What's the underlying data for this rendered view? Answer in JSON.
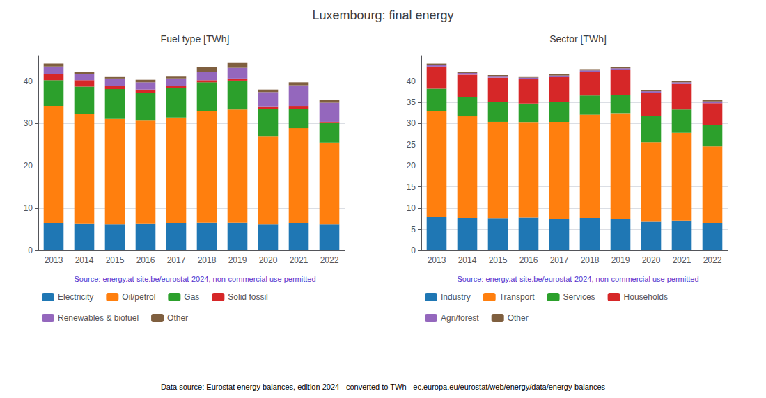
{
  "title": "Luxembourg: final energy",
  "annotations": [
    "Data source: Eurostat energy balances, edition 2024 - converted to TWh - ec.europa.eu/eurostat/web/energy/data/energy-balances"
  ],
  "chart_data": [
    {
      "type": "bar",
      "stacked": true,
      "grid": true,
      "legend": "bottom",
      "title": "Fuel type [TWh]",
      "subtitle": "Source: energy.at-site.be/eurostat-2024, non-commercial use permitted",
      "categories": [
        "2013",
        "2014",
        "2015",
        "2016",
        "2017",
        "2018",
        "2019",
        "2020",
        "2021",
        "2022"
      ],
      "series": [
        {
          "name": "Electricity",
          "color": "#1f77b4",
          "values": [
            6.4,
            6.3,
            6.2,
            6.3,
            6.5,
            6.6,
            6.6,
            6.2,
            6.4,
            6.2
          ]
        },
        {
          "name": "Oil/petrol",
          "color": "#ff7f0e",
          "values": [
            27.7,
            25.9,
            24.9,
            24.4,
            24.9,
            26.4,
            26.7,
            20.7,
            22.5,
            19.3
          ]
        },
        {
          "name": "Gas",
          "color": "#2ca02c",
          "values": [
            6.1,
            6.5,
            7.0,
            6.5,
            7.0,
            6.7,
            6.8,
            6.5,
            4.6,
            4.6
          ]
        },
        {
          "name": "Solid fossil",
          "color": "#d62728",
          "values": [
            1.5,
            1.5,
            0.8,
            0.8,
            0.5,
            0.5,
            0.5,
            0.5,
            0.5,
            0.3
          ]
        },
        {
          "name": "Renewables & biofuel",
          "color": "#9467bd",
          "values": [
            1.7,
            1.5,
            1.7,
            1.7,
            1.7,
            2.0,
            2.5,
            3.5,
            5.0,
            4.5
          ]
        },
        {
          "name": "Other",
          "color": "#7f5f3f",
          "values": [
            0.7,
            0.5,
            0.5,
            0.6,
            0.6,
            1.1,
            1.3,
            0.6,
            0.7,
            0.6
          ]
        }
      ],
      "ylim": [
        0,
        46
      ],
      "yticks": [
        0,
        10,
        20,
        30,
        40
      ]
    },
    {
      "type": "bar",
      "stacked": true,
      "grid": true,
      "legend": "bottom",
      "title": "Sector [TWh]",
      "subtitle": "Source: energy.at-site.be/eurostat-2024, non-commercial use permitted",
      "categories": [
        "2013",
        "2014",
        "2015",
        "2016",
        "2017",
        "2018",
        "2019",
        "2020",
        "2021",
        "2022"
      ],
      "series": [
        {
          "name": "Industry",
          "color": "#1f77b4",
          "values": [
            7.9,
            7.7,
            7.5,
            7.8,
            7.4,
            7.6,
            7.4,
            6.8,
            7.1,
            6.4
          ]
        },
        {
          "name": "Transport",
          "color": "#ff7f0e",
          "values": [
            25.1,
            24.0,
            22.9,
            22.4,
            22.9,
            24.5,
            24.9,
            18.8,
            20.7,
            18.2
          ]
        },
        {
          "name": "Services",
          "color": "#2ca02c",
          "values": [
            5.2,
            4.5,
            4.7,
            4.5,
            4.8,
            4.5,
            4.5,
            6.1,
            5.5,
            5.1
          ]
        },
        {
          "name": "Households",
          "color": "#d62728",
          "values": [
            5.2,
            5.3,
            5.7,
            5.7,
            5.8,
            5.5,
            5.8,
            5.5,
            6.0,
            5.1
          ]
        },
        {
          "name": "Agri/forest",
          "color": "#9467bd",
          "values": [
            0.4,
            0.4,
            0.4,
            0.4,
            0.4,
            0.4,
            0.4,
            0.4,
            0.4,
            0.4
          ]
        },
        {
          "name": "Other",
          "color": "#7f5f3f",
          "values": [
            0.3,
            0.3,
            0.2,
            0.3,
            0.3,
            0.3,
            0.3,
            0.3,
            0.3,
            0.3
          ]
        }
      ],
      "ylim": [
        0,
        46
      ],
      "yticks": [
        0,
        5,
        10,
        15,
        20,
        25,
        30,
        35,
        40
      ]
    }
  ]
}
